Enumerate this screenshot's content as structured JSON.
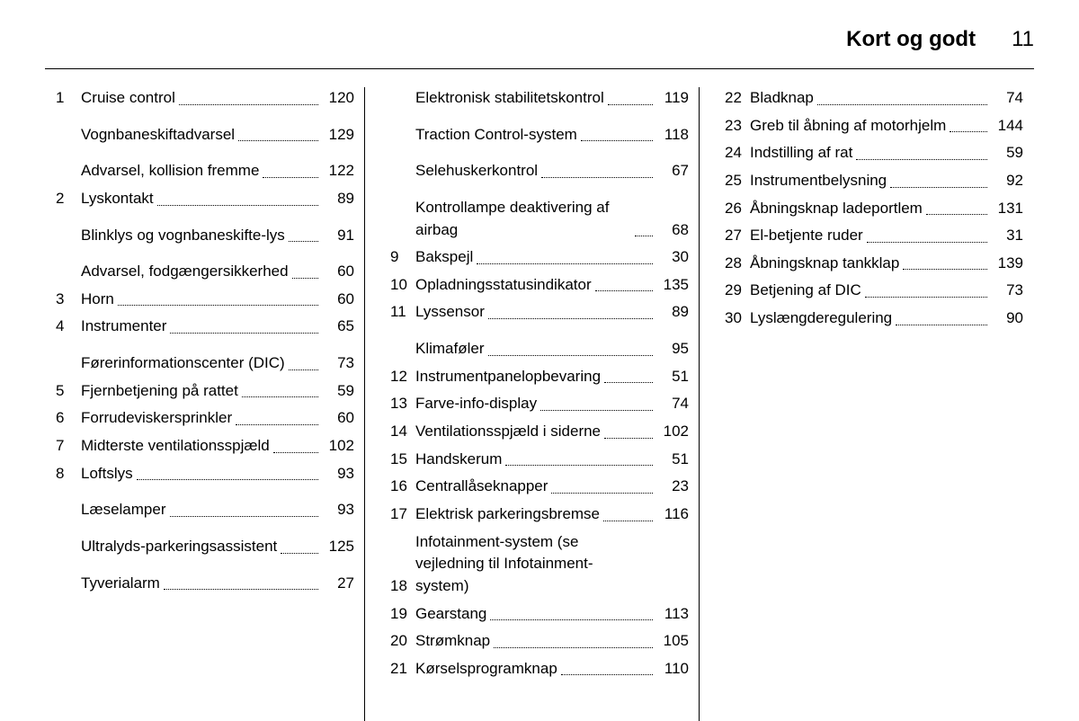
{
  "header": {
    "title": "Kort og godt",
    "page_number": "11"
  },
  "columns": [
    {
      "entries": [
        {
          "num": "1",
          "label": "Cruise control",
          "page": "120"
        },
        {
          "spacer": true
        },
        {
          "label": "Vognbaneskiftadvarsel",
          "page": "129"
        },
        {
          "spacer": true
        },
        {
          "label": "Advarsel, kollision fremme",
          "page": "122"
        },
        {
          "num": "2",
          "label": "Lyskontakt",
          "page": "89"
        },
        {
          "spacer": true
        },
        {
          "label": "Blinklys og vognbaneskifte-lys",
          "page": "91"
        },
        {
          "spacer": true
        },
        {
          "label": "Advarsel, fodgængersik­kerhed",
          "page": "60"
        },
        {
          "num": "3",
          "label": "Horn",
          "page": "60"
        },
        {
          "num": "4",
          "label": "Instrumenter",
          "page": "65"
        },
        {
          "spacer": true
        },
        {
          "label": "Førerinformationscenter (DIC)",
          "page": "73"
        },
        {
          "num": "5",
          "label": "Fjernbetjening på rattet",
          "page": "59"
        },
        {
          "num": "6",
          "label": "Forrudeviskersprinkler",
          "page": "60"
        },
        {
          "num": "7",
          "label": "Midterste ventilations­spjæld",
          "page": "102"
        },
        {
          "num": "8",
          "label": "Loftslys",
          "page": "93"
        },
        {
          "spacer": true
        },
        {
          "label": "Læselamper",
          "page": "93"
        },
        {
          "spacer": true
        },
        {
          "label": "Ultralyds-parkeringsas­sistent",
          "page": "125"
        },
        {
          "spacer": true
        },
        {
          "label": "Tyverialarm",
          "page": "27"
        }
      ]
    },
    {
      "entries": [
        {
          "label": "Elektronisk stabilitets­kontrol",
          "page": "119"
        },
        {
          "spacer": true
        },
        {
          "label": "Traction Control-system",
          "page": "118"
        },
        {
          "spacer": true
        },
        {
          "label": "Selehuskerkontrol",
          "page": "67"
        },
        {
          "spacer": true
        },
        {
          "label": "Kontrollampe deaktivering af airbag",
          "page": "68"
        },
        {
          "num": "9",
          "label": "Bakspejl",
          "page": "30"
        },
        {
          "num": "10",
          "label": "Opladningsstatusindikator",
          "page": "135"
        },
        {
          "num": "11",
          "label": "Lyssensor",
          "page": "89"
        },
        {
          "spacer": true
        },
        {
          "label": "Klimaføler",
          "page": "95"
        },
        {
          "num": "12",
          "label": "Instrumentpanelopbe­varing",
          "page": "51"
        },
        {
          "num": "13",
          "label": "Farve-info-display",
          "page": "74"
        },
        {
          "num": "14",
          "label": "Ventilationsspjæld i siderne",
          "page": "102"
        },
        {
          "num": "15",
          "label": "Handskerum",
          "page": "51"
        },
        {
          "num": "16",
          "label": "Centrallåseknapper",
          "page": "23"
        },
        {
          "num": "17",
          "label": "Elektrisk parkeringsbremse",
          "page": "116"
        },
        {
          "num": "18",
          "label": "Infotainment-system (se vejledning til Infotainment-system)",
          "no_page": true
        },
        {
          "num": "19",
          "label": "Gearstang",
          "page": "113"
        },
        {
          "num": "20",
          "label": "Strømknap",
          "page": "105"
        },
        {
          "num": "21",
          "label": "Kørselsprogramknap",
          "page": "110"
        }
      ]
    },
    {
      "entries": [
        {
          "num": "22",
          "label": "Bladknap",
          "page": "74"
        },
        {
          "num": "23",
          "label": "Greb til åbning af motorhjelm",
          "page": "144"
        },
        {
          "num": "24",
          "label": "Indstilling af rat",
          "page": "59"
        },
        {
          "num": "25",
          "label": "Instrumentbelysning",
          "page": "92"
        },
        {
          "num": "26",
          "label": "Åbningsknap ladeportlem",
          "page": "131"
        },
        {
          "num": "27",
          "label": "El-betjente ruder",
          "page": "31"
        },
        {
          "num": "28",
          "label": "Åbningsknap tankklap",
          "page": "139"
        },
        {
          "num": "29",
          "label": "Betjening af DIC",
          "page": "73"
        },
        {
          "num": "30",
          "label": "Lyslængderegulering",
          "page": "90"
        }
      ]
    }
  ]
}
